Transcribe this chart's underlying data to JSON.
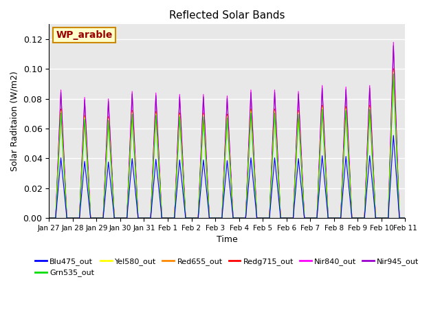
{
  "title": "Reflected Solar Bands",
  "xlabel": "Time",
  "ylabel": "Solar Raditaion (W/m2)",
  "annotation_text": "WP_arable",
  "annotation_bg": "#ffffcc",
  "annotation_border": "#cc8800",
  "annotation_text_color": "#990000",
  "ylim": [
    0,
    0.13
  ],
  "yticks": [
    0.0,
    0.02,
    0.04,
    0.06,
    0.08,
    0.1,
    0.12
  ],
  "num_days": 15,
  "series": [
    {
      "name": "Blu475_out",
      "color": "#0000ff",
      "peak_scale": 0.47
    },
    {
      "name": "Grn535_out",
      "color": "#00dd00",
      "peak_scale": 0.82
    },
    {
      "name": "Yel580_out",
      "color": "#ffff00",
      "peak_scale": 0.83
    },
    {
      "name": "Red655_out",
      "color": "#ff8800",
      "peak_scale": 0.84
    },
    {
      "name": "Redg715_out",
      "color": "#ff0000",
      "peak_scale": 0.85
    },
    {
      "name": "Nir840_out",
      "color": "#ff00ff",
      "peak_scale": 1.0
    },
    {
      "name": "Nir945_out",
      "color": "#9900cc",
      "peak_scale": 0.98
    }
  ],
  "day_peaks": [
    0.086,
    0.081,
    0.08,
    0.085,
    0.084,
    0.083,
    0.083,
    0.082,
    0.086,
    0.086,
    0.085,
    0.089,
    0.088,
    0.089,
    0.118
  ],
  "background_color": "#e8e8e8",
  "fig_bg": "#ffffff",
  "grid_color": "#ffffff",
  "tick_labels": [
    "Jan 27",
    "Jan 28",
    "Jan 29",
    "Jan 30",
    "Jan 31",
    "Feb 1",
    "Feb 2",
    "Feb 3",
    "Feb 4",
    "Feb 5",
    "Feb 6",
    "Feb 7",
    "Feb 8",
    "Feb 9",
    "Feb 10",
    "Feb 11"
  ]
}
